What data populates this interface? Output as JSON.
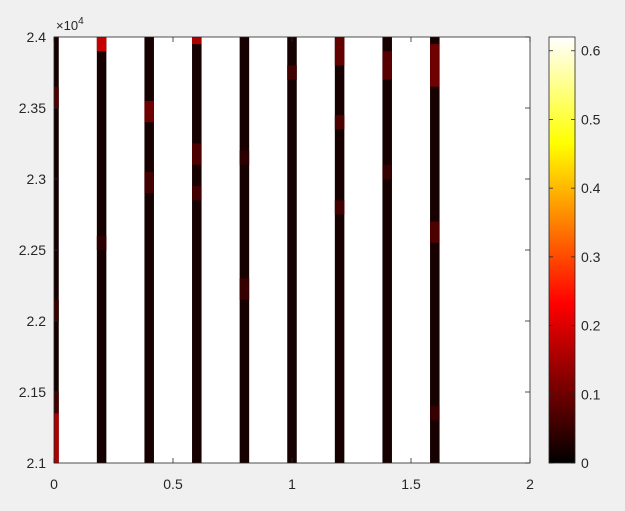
{
  "chart_data": {
    "type": "heatmap",
    "title": "",
    "xlabel": "",
    "ylabel": "",
    "xlim": [
      0,
      2
    ],
    "ylim": [
      21000,
      24000
    ],
    "x_ticks": [
      0,
      0.5,
      1,
      1.5,
      2
    ],
    "x_tick_labels": [
      "0",
      "0.5",
      "1",
      "1.5",
      "2"
    ],
    "y_ticks": [
      21000,
      21500,
      22000,
      22500,
      23000,
      23500,
      24000
    ],
    "y_tick_labels": [
      "2.1",
      "2.15",
      "2.2",
      "2.25",
      "2.3",
      "2.35",
      "2.4"
    ],
    "y_exponent_label": "×10",
    "y_exponent_power": "4",
    "colormap": "hot",
    "colorbar": {
      "range": [
        0,
        0.62
      ],
      "ticks": [
        0,
        0.1,
        0.2,
        0.3,
        0.4,
        0.5,
        0.6
      ],
      "tick_labels": [
        "0",
        "0.1",
        "0.2",
        "0.3",
        "0.4",
        "0.5",
        "0.6"
      ]
    },
    "background_color": "#ffffff",
    "columns": [
      {
        "x": 0.0,
        "segments": [
          {
            "y0": 21000,
            "y1": 21350,
            "v": 0.16
          },
          {
            "y0": 21350,
            "y1": 21500,
            "v": 0.06
          },
          {
            "y0": 22000,
            "y1": 22150,
            "v": 0.05
          },
          {
            "y0": 23500,
            "y1": 23650,
            "v": 0.07
          }
        ]
      },
      {
        "x": 0.2,
        "segments": [
          {
            "y0": 23900,
            "y1": 24000,
            "v": 0.18
          },
          {
            "y0": 22500,
            "y1": 22600,
            "v": 0.04
          }
        ]
      },
      {
        "x": 0.4,
        "segments": [
          {
            "y0": 23400,
            "y1": 23550,
            "v": 0.1
          },
          {
            "y0": 22900,
            "y1": 23050,
            "v": 0.06
          }
        ]
      },
      {
        "x": 0.6,
        "segments": [
          {
            "y0": 23950,
            "y1": 24000,
            "v": 0.16
          },
          {
            "y0": 23100,
            "y1": 23250,
            "v": 0.07
          },
          {
            "y0": 22850,
            "y1": 22950,
            "v": 0.06
          }
        ]
      },
      {
        "x": 0.8,
        "segments": [
          {
            "y0": 22150,
            "y1": 22300,
            "v": 0.05
          },
          {
            "y0": 23100,
            "y1": 23200,
            "v": 0.04
          }
        ]
      },
      {
        "x": 1.0,
        "segments": [
          {
            "y0": 23700,
            "y1": 23800,
            "v": 0.06
          }
        ]
      },
      {
        "x": 1.2,
        "segments": [
          {
            "y0": 23800,
            "y1": 24000,
            "v": 0.09
          },
          {
            "y0": 23350,
            "y1": 23450,
            "v": 0.07
          },
          {
            "y0": 22750,
            "y1": 22850,
            "v": 0.06
          }
        ]
      },
      {
        "x": 1.4,
        "segments": [
          {
            "y0": 23700,
            "y1": 23900,
            "v": 0.08
          },
          {
            "y0": 23000,
            "y1": 23100,
            "v": 0.05
          }
        ]
      },
      {
        "x": 1.6,
        "segments": [
          {
            "y0": 23650,
            "y1": 23950,
            "v": 0.1
          },
          {
            "y0": 22550,
            "y1": 22700,
            "v": 0.07
          },
          {
            "y0": 21300,
            "y1": 21400,
            "v": 0.05
          }
        ]
      }
    ],
    "column_base_value": 0.02,
    "column_width": 0.04
  }
}
